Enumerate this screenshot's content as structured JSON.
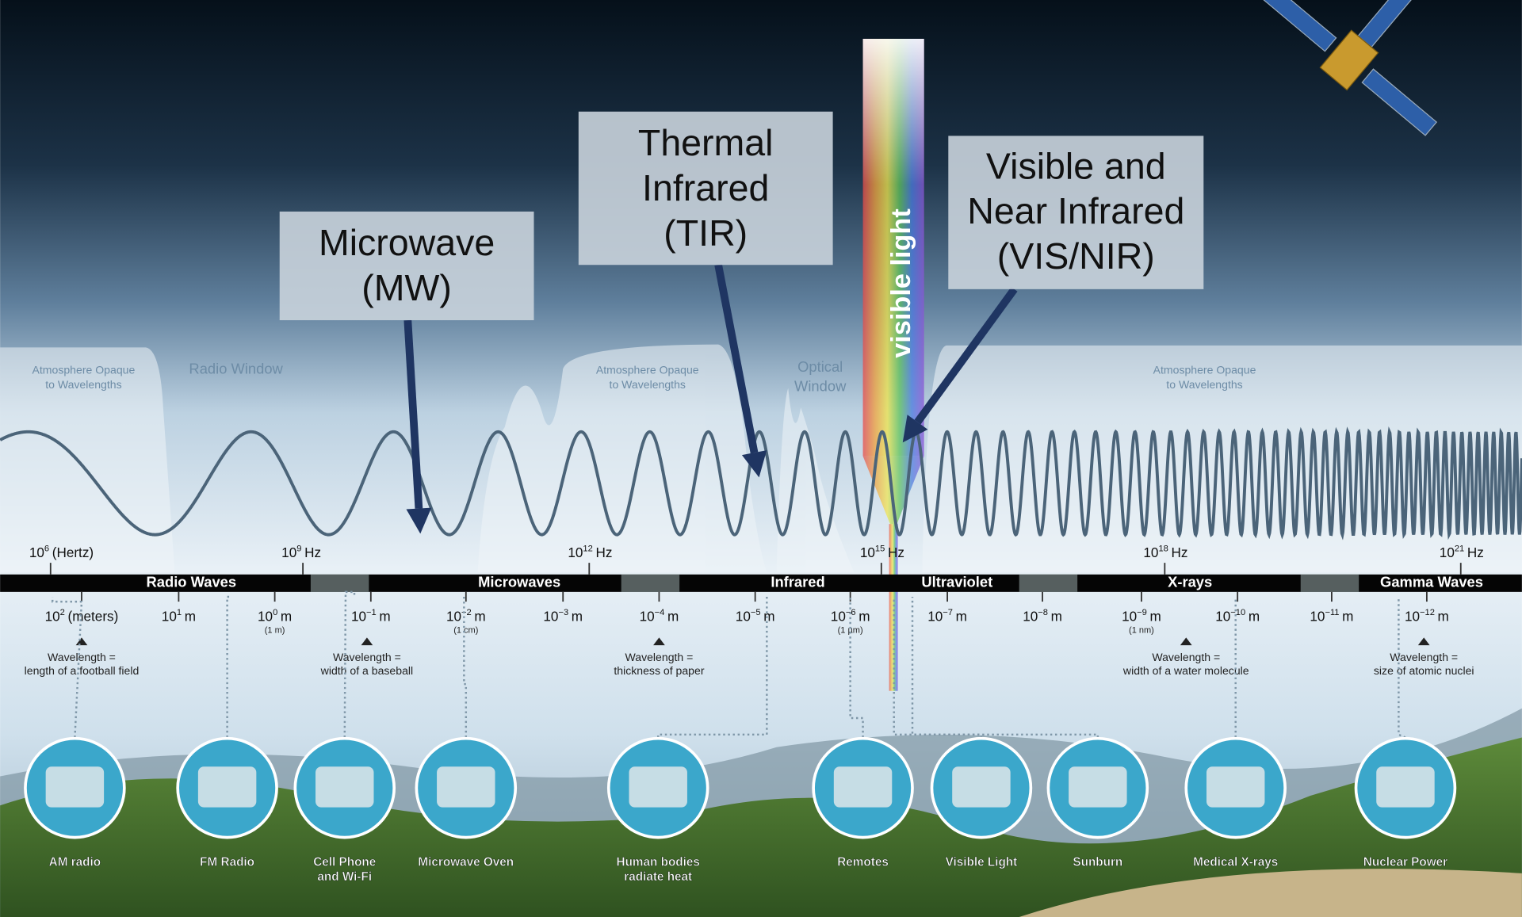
{
  "callouts": [
    {
      "lines": [
        "Microwave",
        "(MW)"
      ]
    },
    {
      "lines": [
        "Thermal",
        "Infrared",
        "(TIR)"
      ]
    },
    {
      "lines": [
        "Visible and",
        "Near Infrared",
        "(VIS/NIR)"
      ]
    }
  ],
  "visible_label": "visible light",
  "atmosphere_labels": [
    {
      "lines": [
        "Atmosphere Opaque",
        "to Wavelengths"
      ]
    },
    {
      "lines": [
        "Radio Window"
      ]
    },
    {
      "lines": [
        "Atmosphere Opaque",
        "to Wavelengths"
      ]
    },
    {
      "lines": [
        "Optical",
        "Window"
      ]
    },
    {
      "lines": [
        "Atmosphere Opaque",
        "to Wavelengths"
      ]
    }
  ],
  "frequencies": [
    {
      "base": "10",
      "exp": "6",
      "unit": "(Hertz)"
    },
    {
      "base": "10",
      "exp": "9",
      "unit": "Hz"
    },
    {
      "base": "10",
      "exp": "12",
      "unit": "Hz"
    },
    {
      "base": "10",
      "exp": "15",
      "unit": "Hz"
    },
    {
      "base": "10",
      "exp": "18",
      "unit": "Hz"
    },
    {
      "base": "10",
      "exp": "21",
      "unit": "Hz"
    }
  ],
  "bands": [
    "Radio Waves",
    "Microwaves",
    "Infrared",
    "Ultraviolet",
    "X-rays",
    "Gamma Waves"
  ],
  "wavelengths": [
    {
      "base": "10",
      "exp": "2",
      "unit": "(meters)"
    },
    {
      "base": "10",
      "exp": "1",
      "unit": "m"
    },
    {
      "base": "10",
      "exp": "0",
      "unit": "m",
      "note": "(1 m)"
    },
    {
      "base": "10",
      "exp": "−1",
      "unit": "m"
    },
    {
      "base": "10",
      "exp": "−2",
      "unit": "m",
      "note": "(1 cm)"
    },
    {
      "base": "10",
      "exp": "−3",
      "unit": "m"
    },
    {
      "base": "10",
      "exp": "−4",
      "unit": "m"
    },
    {
      "base": "10",
      "exp": "−5",
      "unit": "m"
    },
    {
      "base": "10",
      "exp": "−6",
      "unit": "m",
      "note": "(1 µm)"
    },
    {
      "base": "10",
      "exp": "−7",
      "unit": "m"
    },
    {
      "base": "10",
      "exp": "−8",
      "unit": "m"
    },
    {
      "base": "10",
      "exp": "−9",
      "unit": "m",
      "note": "(1 nm)"
    },
    {
      "base": "10",
      "exp": "−10",
      "unit": "m"
    },
    {
      "base": "10",
      "exp": "−11",
      "unit": "m"
    },
    {
      "base": "10",
      "exp": "−12",
      "unit": "m"
    }
  ],
  "comparisons": [
    {
      "lines": [
        "Wavelength =",
        "length of a football field"
      ]
    },
    {
      "lines": [
        "Wavelength =",
        "width of a baseball"
      ]
    },
    {
      "lines": [
        "Wavelength =",
        "thickness of paper"
      ]
    },
    {
      "lines": [
        "Wavelength =",
        "width of a water molecule"
      ]
    },
    {
      "lines": [
        "Wavelength =",
        "size of atomic nuclei"
      ]
    }
  ],
  "sources": [
    {
      "lines": [
        "AM radio"
      ]
    },
    {
      "lines": [
        "FM Radio"
      ]
    },
    {
      "lines": [
        "Cell Phone",
        "and Wi-Fi"
      ]
    },
    {
      "lines": [
        "Microwave Oven"
      ]
    },
    {
      "lines": [
        "Human bodies",
        "radiate heat"
      ]
    },
    {
      "lines": [
        "Remotes"
      ]
    },
    {
      "lines": [
        "Visible Light"
      ]
    },
    {
      "lines": [
        "Sunburn"
      ]
    },
    {
      "lines": [
        "Medical X-rays"
      ]
    },
    {
      "lines": [
        "Nuclear Power"
      ]
    }
  ]
}
